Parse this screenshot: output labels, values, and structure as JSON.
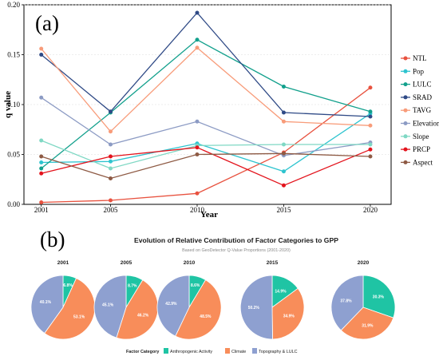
{
  "panel_a_label": "(a)",
  "panel_b_label": "(b)",
  "colors": {
    "NTL": "#e8523f",
    "Pop": "#2ec4cf",
    "LULC": "#12a08c",
    "SRAD": "#2f4a86",
    "TAVG": "#f89c7a",
    "Elevation": "#8c9bc4",
    "Slope": "#7fd8c4",
    "PRCP": "#e3131c",
    "Aspect": "#8e5a44",
    "anthropogenic": "#1fc4a4",
    "climate": "#f88d5a",
    "topography": "#8ea0d0"
  },
  "chart_data": [
    {
      "type": "line",
      "xlabel": "Year",
      "ylabel": "q value",
      "x": [
        2001,
        2005,
        2010,
        2015,
        2020
      ],
      "ylim": [
        0,
        0.2
      ],
      "yticks": [
        "0.00",
        "0.05",
        "0.10",
        "0.15",
        "0.20"
      ],
      "grid": true,
      "legend": "right",
      "series": [
        {
          "name": "NTL",
          "values": [
            0.002,
            0.004,
            0.011,
            0.052,
            0.117
          ]
        },
        {
          "name": "Pop",
          "values": [
            0.042,
            0.043,
            0.061,
            0.033,
            0.091
          ]
        },
        {
          "name": "LULC",
          "values": [
            0.036,
            0.092,
            0.165,
            0.118,
            0.093
          ]
        },
        {
          "name": "SRAD",
          "values": [
            0.15,
            0.093,
            0.192,
            0.092,
            0.088
          ]
        },
        {
          "name": "TAVG",
          "values": [
            0.156,
            0.073,
            0.157,
            0.083,
            0.079
          ]
        },
        {
          "name": "Elevation",
          "values": [
            0.107,
            0.06,
            0.083,
            0.049,
            0.062
          ]
        },
        {
          "name": "Slope",
          "values": [
            0.064,
            0.036,
            0.059,
            0.06,
            0.06
          ]
        },
        {
          "name": "PRCP",
          "values": [
            0.031,
            0.048,
            0.057,
            0.019,
            0.055
          ]
        },
        {
          "name": "Aspect",
          "values": [
            0.048,
            0.026,
            0.05,
            0.051,
            0.048
          ]
        }
      ]
    },
    {
      "type": "pie",
      "title": "Evolution of Relative Contribution of Factor Categories to GPP",
      "subtitle": "Based on GeoDetector Q-Value Proportions (2001-2020)",
      "legend": "bottom",
      "legend_title": "Factor Category",
      "categories": [
        "Anthropogenic Activity",
        "Climate",
        "Topography & LULC"
      ],
      "pies": [
        {
          "year": "2001",
          "values": [
            6.8,
            53.1,
            40.1
          ],
          "labels": [
            "6.8%",
            "53.1%",
            "40.1%"
          ]
        },
        {
          "year": "2005",
          "values": [
            8.7,
            46.2,
            45.1
          ],
          "labels": [
            "8.7%",
            "46.2%",
            "45.1%"
          ]
        },
        {
          "year": "2010",
          "values": [
            8.6,
            48.5,
            42.9
          ],
          "labels": [
            "8.6%",
            "48.5%",
            "42.9%"
          ]
        },
        {
          "year": "2015",
          "values": [
            14.9,
            34.9,
            50.2
          ],
          "labels": [
            "14.9%",
            "34.9%",
            "50.2%"
          ]
        },
        {
          "year": "2020",
          "values": [
            30.3,
            31.9,
            37.8
          ],
          "labels": [
            "30.3%",
            "31.9%",
            "37.8%"
          ]
        }
      ]
    }
  ]
}
